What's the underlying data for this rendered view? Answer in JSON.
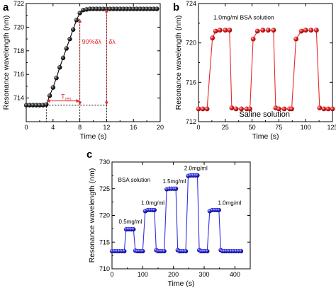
{
  "chart_data": [
    {
      "panel": "a",
      "type": "line",
      "xlabel": "Time (s)",
      "ylabel": "Resonance wavelength (nm)",
      "xlim": [
        0,
        20
      ],
      "ylim": [
        712,
        722
      ],
      "xticks": [
        0,
        4,
        8,
        12,
        16,
        20
      ],
      "yticks": [
        714,
        716,
        718,
        720,
        722
      ],
      "grid": false,
      "series": [
        {
          "marker_color": "#222222",
          "line_color": "#000000",
          "x": [
            0,
            0.5,
            1,
            1.5,
            2,
            2.5,
            3,
            3.5,
            4,
            4.5,
            5,
            5.5,
            6,
            6.5,
            7,
            7.5,
            8,
            8.5,
            9,
            9.5,
            10,
            10.5,
            11,
            11.5,
            12,
            12.5,
            13,
            13.5,
            14,
            14.5,
            15,
            15.5,
            16,
            16.5,
            17,
            17.5,
            18,
            18.5,
            19,
            19.5
          ],
          "y": [
            713.4,
            713.4,
            713.4,
            713.4,
            713.4,
            713.4,
            713.45,
            714.2,
            714.9,
            715.7,
            716.6,
            717.4,
            718.2,
            719.0,
            719.8,
            720.6,
            721.2,
            721.45,
            721.5,
            721.55,
            721.55,
            721.55,
            721.55,
            721.55,
            721.55,
            721.55,
            721.55,
            721.55,
            721.55,
            721.55,
            721.55,
            721.55,
            721.55,
            721.55,
            721.55,
            721.55,
            721.55,
            721.55,
            721.55,
            721.55
          ]
        }
      ],
      "annotations": [
        {
          "text": "90%δλ",
          "color": "#e8282b"
        },
        {
          "text": "δλ",
          "color": "#e8282b"
        },
        {
          "text": "T",
          "sub": "res",
          "color": "#e8282b"
        }
      ],
      "markers": {
        "t_start": 3,
        "t_90": 8,
        "t_end": 12,
        "baseline": 713.4,
        "y_90": 720.7,
        "y_top": 721.55
      }
    },
    {
      "panel": "b",
      "type": "line",
      "xlabel": "Time (s)",
      "ylabel": "Resonance wavelength (nm)",
      "xlim": [
        0,
        125
      ],
      "ylim": [
        712,
        724
      ],
      "xticks": [
        0,
        25,
        50,
        75,
        100,
        125
      ],
      "yticks": [
        712,
        716,
        720,
        724
      ],
      "grid": false,
      "series": [
        {
          "marker_color": "#e8282b",
          "line_color": "#e8282b",
          "x": [
            0,
            4,
            8,
            13,
            16,
            20,
            25,
            29,
            31,
            35,
            40,
            45,
            48,
            51,
            55,
            60,
            65,
            70,
            72,
            75,
            80,
            85,
            87,
            91,
            96,
            100,
            105,
            110,
            113,
            117,
            121,
            125
          ],
          "y": [
            713.3,
            713.3,
            713.3,
            720.5,
            721.2,
            721.3,
            721.3,
            721.3,
            713.4,
            713.3,
            713.3,
            713.3,
            713.3,
            720.4,
            721.2,
            721.3,
            721.3,
            721.3,
            713.4,
            713.3,
            713.3,
            713.3,
            713.3,
            720.4,
            721.2,
            721.3,
            721.3,
            721.3,
            713.4,
            713.3,
            713.3,
            713.3
          ]
        }
      ],
      "annotations": [
        {
          "text": "1.0mg/ml BSA solution"
        },
        {
          "text": "Saline solution"
        }
      ]
    },
    {
      "panel": "c",
      "type": "line",
      "xlabel": "Time (s)",
      "ylabel": "Resonance wavelength (nm)",
      "xlim": [
        0,
        450
      ],
      "ylim": [
        710,
        730
      ],
      "xticks": [
        0,
        100,
        200,
        300,
        400
      ],
      "yticks": [
        710,
        715,
        720,
        725,
        730
      ],
      "grid": false,
      "series": [
        {
          "marker_color": "#2020d0",
          "line_color": "#3030e0",
          "x": [
            0,
            8,
            16,
            24,
            32,
            40,
            46,
            52,
            58,
            64,
            70,
            76,
            82,
            88,
            94,
            100,
            108,
            116,
            124,
            132,
            138,
            144,
            150,
            156,
            162,
            170,
            178,
            186,
            194,
            202,
            208,
            214,
            220,
            226,
            232,
            240,
            248,
            256,
            264,
            272,
            278,
            284,
            290,
            296,
            302,
            310,
            318,
            326,
            334,
            342,
            348,
            354,
            360,
            366,
            372,
            380,
            388,
            396,
            404,
            412,
            420
          ],
          "y": [
            713.3,
            713.3,
            713.3,
            713.3,
            713.3,
            713.3,
            717.4,
            717.4,
            717.4,
            717.4,
            717.4,
            713.4,
            713.3,
            713.3,
            713.3,
            713.3,
            720.8,
            721.0,
            721.0,
            721.0,
            721.0,
            713.5,
            713.3,
            713.3,
            713.3,
            713.3,
            724.9,
            725.0,
            725.0,
            725.0,
            725.0,
            713.5,
            713.3,
            713.3,
            713.3,
            713.3,
            727.4,
            727.5,
            727.5,
            727.5,
            727.5,
            713.5,
            713.3,
            713.3,
            713.3,
            713.3,
            720.8,
            721.0,
            721.0,
            721.0,
            721.0,
            713.5,
            713.3,
            713.3,
            713.3,
            713.3,
            713.3,
            713.3,
            713.3,
            713.3,
            713.3
          ]
        }
      ],
      "annotations": [
        {
          "text": "BSA solution"
        },
        {
          "text": "0.5mg/ml"
        },
        {
          "text": "1.0mg/ml"
        },
        {
          "text": "1.5mg/ml"
        },
        {
          "text": "2.0mg/ml"
        },
        {
          "text": "1.0mg/ml"
        }
      ]
    }
  ],
  "panel_labels": [
    "a",
    "b",
    "c"
  ]
}
